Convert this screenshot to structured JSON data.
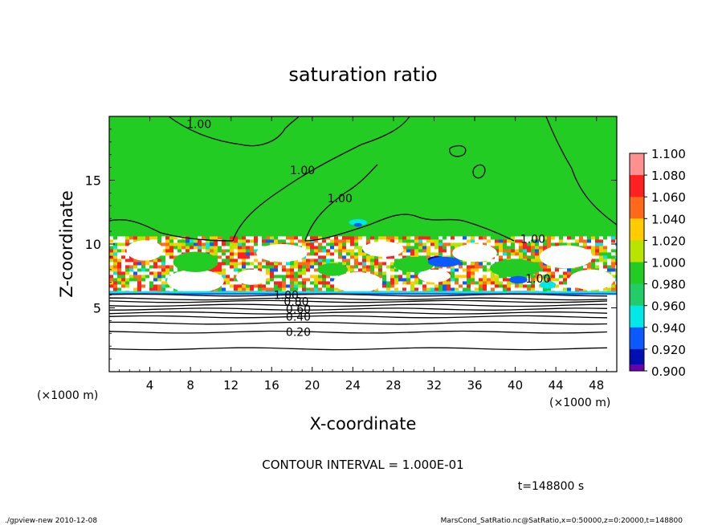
{
  "chart_data": {
    "type": "heatmap",
    "title": "saturation ratio",
    "xlabel": "X-coordinate",
    "ylabel": "Z-coordinate",
    "x_unit": "(×1000 m)",
    "y_unit": "(×1000 m)",
    "xlim": [
      0,
      50
    ],
    "ylim": [
      0,
      20
    ],
    "x_ticks": [
      4,
      8,
      12,
      16,
      20,
      24,
      28,
      32,
      36,
      40,
      44,
      48
    ],
    "y_ticks": [
      5,
      10,
      15
    ],
    "contour_labels": [
      {
        "text": "1.00",
        "x": 7.6,
        "z": 19.4
      },
      {
        "text": "1.00",
        "x": 17.8,
        "z": 15.8
      },
      {
        "text": "1.00",
        "x": 21.5,
        "z": 13.6
      },
      {
        "text": "1.00",
        "x": 40.5,
        "z": 10.4
      },
      {
        "text": "1.00",
        "x": 41.0,
        "z": 7.3
      },
      {
        "text": "1.00",
        "x": 16.2,
        "z": 6.0
      },
      {
        "text": "0.80",
        "x": 17.2,
        "z": 5.5
      },
      {
        "text": "0.60",
        "x": 17.4,
        "z": 4.9
      },
      {
        "text": "0.40",
        "x": 17.4,
        "z": 4.3
      },
      {
        "text": "0.20",
        "x": 17.4,
        "z": 3.1
      }
    ],
    "colorbar": {
      "levels": [
        "1.100",
        "1.080",
        "1.060",
        "1.040",
        "1.020",
        "1.000",
        "0.980",
        "0.960",
        "0.940",
        "0.920",
        "0.900"
      ],
      "colors": [
        "#ff9090",
        "#ff2020",
        "#ff6a1a",
        "#ffcc00",
        "#b8e400",
        "#22cc22",
        "#22cc66",
        "#00e8e8",
        "#0a5aff",
        "#0010b0",
        "#6a00b0"
      ]
    },
    "contour_interval": "CONTOUR INTERVAL = 1.000E-01",
    "time_label": "t=148800 s"
  },
  "footer": {
    "left": "./gpview-new  2010-12-08",
    "right": "MarsCond_SatRatio.nc@SatRatio,x=0:50000,z=0:20000,t=148800"
  }
}
